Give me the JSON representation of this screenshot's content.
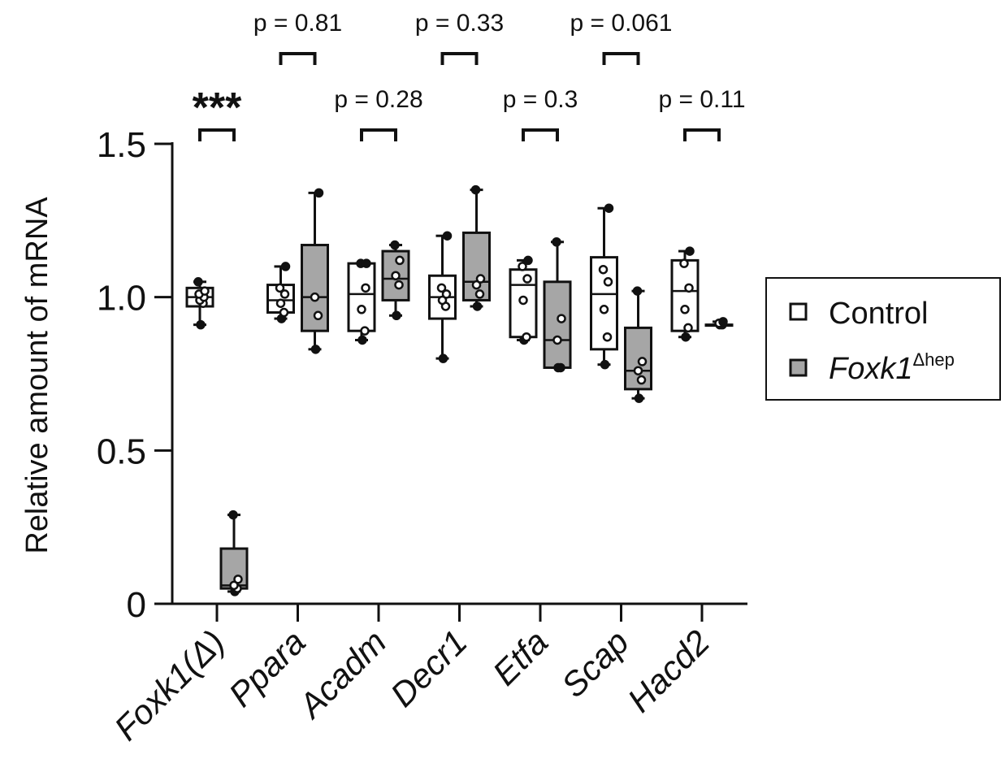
{
  "chart_data": {
    "type": "box",
    "ylabel": "Relative amount of mRNA",
    "ylim": [
      0,
      1.5
    ],
    "yticks": [
      {
        "value": 0,
        "label": "0"
      },
      {
        "value": 0.5,
        "label": "0.5"
      },
      {
        "value": 1.0,
        "label": "1.0"
      },
      {
        "value": 1.5,
        "label": "1.5"
      }
    ],
    "categories": [
      "Foxk1(Δ)",
      "Ppara",
      "Acadm",
      "Decr1",
      "Etfa",
      "Scap",
      "Hacd2"
    ],
    "series": [
      {
        "name": "Control",
        "color": "#ffffff",
        "boxes": [
          {
            "min": 0.91,
            "q1": 0.97,
            "median": 1.0,
            "q3": 1.03,
            "max": 1.05,
            "points": [
              0.91,
              0.98,
              0.99,
              1.0,
              1.01,
              1.02,
              1.05
            ]
          },
          {
            "min": 0.93,
            "q1": 0.95,
            "median": 0.99,
            "q3": 1.04,
            "max": 1.1,
            "points": [
              0.93,
              0.95,
              0.98,
              1.01,
              1.03,
              1.1
            ]
          },
          {
            "min": 0.86,
            "q1": 0.89,
            "median": 1.01,
            "q3": 1.11,
            "max": 1.11,
            "points": [
              0.86,
              0.89,
              0.96,
              1.03,
              1.11,
              1.11
            ]
          },
          {
            "min": 0.8,
            "q1": 0.93,
            "median": 1.0,
            "q3": 1.07,
            "max": 1.2,
            "points": [
              0.8,
              0.97,
              0.99,
              1.01,
              1.03,
              1.2
            ]
          },
          {
            "min": 0.86,
            "q1": 0.87,
            "median": 1.04,
            "q3": 1.09,
            "max": 1.12,
            "points": [
              0.86,
              0.87,
              0.99,
              1.06,
              1.1,
              1.12
            ]
          },
          {
            "min": 0.78,
            "q1": 0.83,
            "median": 1.01,
            "q3": 1.13,
            "max": 1.29,
            "points": [
              0.78,
              0.87,
              0.96,
              1.05,
              1.09,
              1.29
            ]
          },
          {
            "min": 0.87,
            "q1": 0.89,
            "median": 1.02,
            "q3": 1.12,
            "max": 1.15,
            "points": [
              0.87,
              0.9,
              0.96,
              1.03,
              1.11,
              1.15
            ]
          }
        ]
      },
      {
        "name": "Foxk1Δhep",
        "color": "#a6a6a6",
        "boxes": [
          {
            "min": 0.04,
            "q1": 0.05,
            "median": 0.06,
            "q3": 0.18,
            "max": 0.29,
            "points": [
              0.04,
              0.05,
              0.06,
              0.08,
              0.29
            ]
          },
          {
            "min": 0.83,
            "q1": 0.89,
            "median": 1.0,
            "q3": 1.17,
            "max": 1.34,
            "points": [
              0.83,
              0.94,
              1.0,
              1.34
            ]
          },
          {
            "min": 0.94,
            "q1": 0.99,
            "median": 1.06,
            "q3": 1.15,
            "max": 1.17,
            "points": [
              0.94,
              1.04,
              1.07,
              1.12,
              1.17
            ]
          },
          {
            "min": 0.97,
            "q1": 0.99,
            "median": 1.05,
            "q3": 1.21,
            "max": 1.35,
            "points": [
              0.97,
              1.01,
              1.04,
              1.06,
              1.35
            ]
          },
          {
            "min": 0.77,
            "q1": 0.77,
            "median": 0.86,
            "q3": 1.05,
            "max": 1.18,
            "points": [
              0.77,
              0.77,
              0.86,
              0.93,
              1.18
            ]
          },
          {
            "min": 0.67,
            "q1": 0.7,
            "median": 0.76,
            "q3": 0.9,
            "max": 1.02,
            "points": [
              0.67,
              0.73,
              0.76,
              0.79,
              1.02
            ]
          },
          {
            "min": 0.91,
            "q1": 0.91,
            "median": 0.91,
            "q3": 0.91,
            "max": 0.92,
            "points": [
              0.91,
              0.91,
              0.915,
              0.92
            ]
          }
        ]
      }
    ],
    "annotations": [
      "***",
      "p = 0.81",
      "p = 0.28",
      "p = 0.33",
      "p = 0.3",
      "p = 0.061",
      "p = 0.11"
    ],
    "legend_position": "right",
    "legend": [
      {
        "label": "Control"
      },
      {
        "label": "Foxk1",
        "superscript": "Δhep"
      }
    ]
  }
}
